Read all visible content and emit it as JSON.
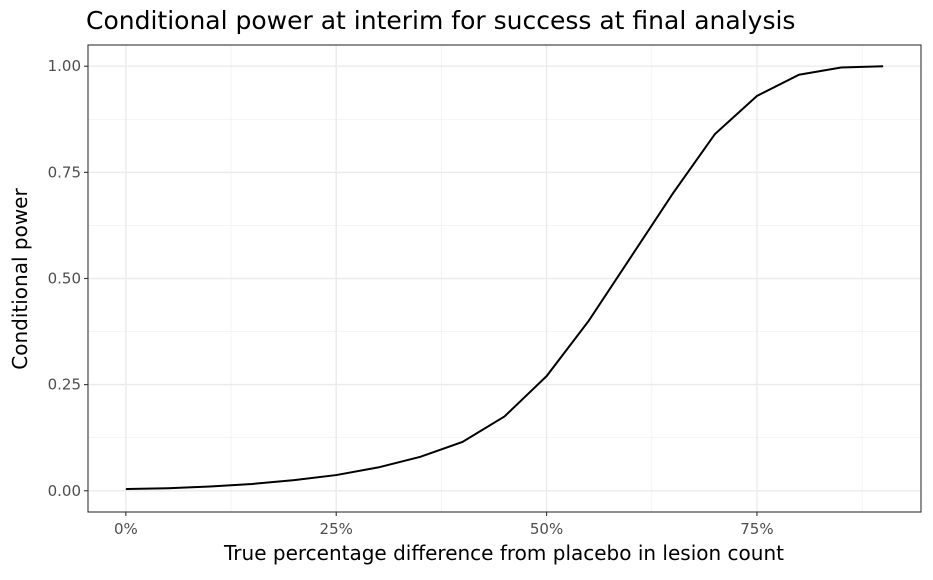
{
  "chart_data": {
    "type": "line",
    "title": "Conditional power at interim for success at final analysis",
    "xlabel": "True percentage difference from placebo in lesion count",
    "ylabel": "Conditional power",
    "xlim": [
      -0.045,
      0.945
    ],
    "ylim": [
      -0.05,
      1.05
    ],
    "x_ticks": [
      0,
      0.25,
      0.5,
      0.75
    ],
    "x_tick_labels": [
      "0%",
      "25%",
      "50%",
      "75%"
    ],
    "y_ticks": [
      0,
      0.25,
      0.5,
      0.75,
      1.0
    ],
    "y_tick_labels": [
      "0.00",
      "0.25",
      "0.50",
      "0.75",
      "1.00"
    ],
    "grid": true,
    "legend": "none",
    "series": [
      {
        "x": [
          0.0,
          0.05,
          0.1,
          0.15,
          0.2,
          0.25,
          0.3,
          0.35,
          0.4,
          0.45,
          0.5,
          0.55,
          0.6,
          0.65,
          0.7,
          0.75,
          0.8,
          0.85,
          0.9
        ],
        "y": [
          0.004,
          0.006,
          0.01,
          0.016,
          0.025,
          0.037,
          0.055,
          0.08,
          0.115,
          0.175,
          0.27,
          0.4,
          0.55,
          0.7,
          0.84,
          0.93,
          0.98,
          0.997,
          1.0
        ],
        "color": "#000000"
      }
    ]
  }
}
